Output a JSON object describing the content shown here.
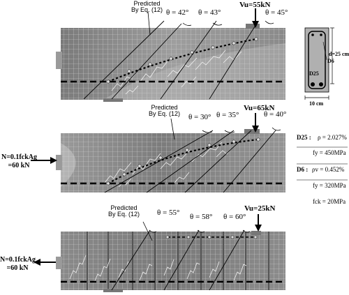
{
  "panel_top": {
    "predicted": [
      "Predicted",
      "By Eq. (12)"
    ],
    "angles": [
      "θ = 42°",
      "θ = 43°",
      "θ = 45°"
    ],
    "load": "Vu=55kN"
  },
  "panel_middle": {
    "predicted": [
      "Predicted",
      "By Eq. (12)"
    ],
    "angles": [
      "θ = 30°",
      "θ = 35°",
      "θ = 40°"
    ],
    "load": "Vu=65kN",
    "axial": [
      "N=0.1fckAg",
      "=60 kN"
    ]
  },
  "panel_bottom": {
    "predicted": [
      "Predicted",
      "By Eq. (12)"
    ],
    "angles": [
      "θ = 55°",
      "θ = 58°",
      "θ = 60°"
    ],
    "load": "Vu=25kN",
    "axial": [
      "N=0.1fckAg",
      "=60 kN"
    ]
  },
  "section": {
    "height_label": "d=25 cm",
    "width_label": "10 cm",
    "top_bar_label": "D6",
    "bottom_bar_label": "D25"
  },
  "properties": {
    "d25": {
      "label": "D25 :",
      "rho": "ρ = 2.027%",
      "fy": "fy = 450MPa"
    },
    "d6": {
      "label": "D6 :",
      "rho": "ρv = 0.452%",
      "fy": "fy = 320MPa"
    },
    "fck": "fck = 20MPa"
  },
  "colors": {
    "beam_dark": "#6f6f6f",
    "beam_light": "#a8a8a8",
    "mesh": "#d8d8d8"
  }
}
